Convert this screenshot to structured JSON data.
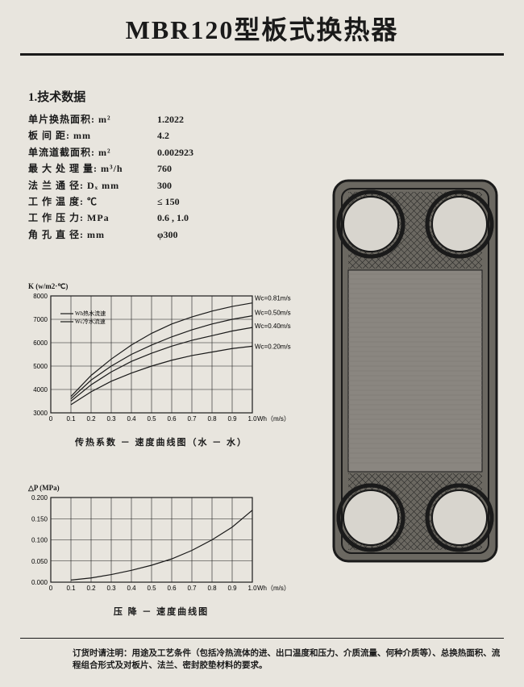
{
  "title": "MBR120型板式换热器",
  "section_heading": "1.技术数据",
  "specs": [
    {
      "label": "单片换热面积: m²",
      "value": "1.2022"
    },
    {
      "label": "板 间 距: mm",
      "value": "4.2"
    },
    {
      "label": "单流道截面积: m²",
      "value": "0.002923"
    },
    {
      "label": "最 大 处 理 量: m³/h",
      "value": "760"
    },
    {
      "label": "法 兰 通 径: Dₓ mm",
      "value": "300"
    },
    {
      "label": "工 作 温 度: ℃",
      "value": "≤ 150"
    },
    {
      "label": "工 作 压 力: MPa",
      "value": "0.6 , 1.0"
    },
    {
      "label": "角 孔 直 径: mm",
      "value": "φ300"
    }
  ],
  "chart1": {
    "type": "line",
    "y_title": "K (w/m2·℃)",
    "x_title": "Wh（m/s）",
    "caption": "传热系数 － 速度曲线图（水 － 水）",
    "xlim": [
      0,
      1.0
    ],
    "ylim": [
      3000,
      8000
    ],
    "xtick_step": 0.1,
    "ytick_step": 1000,
    "legend": [
      "Wh热水流速",
      "Wc冷水流速"
    ],
    "series": [
      {
        "label": "Wc=0.81m/s",
        "data": [
          [
            0.1,
            3700
          ],
          [
            0.2,
            4600
          ],
          [
            0.3,
            5300
          ],
          [
            0.4,
            5900
          ],
          [
            0.5,
            6400
          ],
          [
            0.6,
            6800
          ],
          [
            0.7,
            7100
          ],
          [
            0.8,
            7350
          ],
          [
            0.9,
            7550
          ],
          [
            1.0,
            7700
          ]
        ]
      },
      {
        "label": "Wc=0.50m/s",
        "data": [
          [
            0.1,
            3600
          ],
          [
            0.2,
            4400
          ],
          [
            0.3,
            5000
          ],
          [
            0.4,
            5500
          ],
          [
            0.5,
            5900
          ],
          [
            0.6,
            6250
          ],
          [
            0.7,
            6550
          ],
          [
            0.8,
            6800
          ],
          [
            0.9,
            7000
          ],
          [
            1.0,
            7150
          ]
        ]
      },
      {
        "label": "Wc=0.40m/s",
        "data": [
          [
            0.1,
            3500
          ],
          [
            0.2,
            4200
          ],
          [
            0.3,
            4750
          ],
          [
            0.4,
            5200
          ],
          [
            0.5,
            5550
          ],
          [
            0.6,
            5850
          ],
          [
            0.7,
            6100
          ],
          [
            0.8,
            6300
          ],
          [
            0.9,
            6500
          ],
          [
            1.0,
            6650
          ]
        ]
      },
      {
        "label": "Wc=0.20m/s",
        "data": [
          [
            0.1,
            3350
          ],
          [
            0.2,
            3900
          ],
          [
            0.3,
            4350
          ],
          [
            0.4,
            4700
          ],
          [
            0.5,
            5000
          ],
          [
            0.6,
            5250
          ],
          [
            0.7,
            5450
          ],
          [
            0.8,
            5600
          ],
          [
            0.9,
            5750
          ],
          [
            1.0,
            5850
          ]
        ]
      }
    ],
    "background_color": "#e8e5de",
    "line_color": "#1a1a1a",
    "grid_color": "#1a1a1a"
  },
  "chart2": {
    "type": "line",
    "y_title": "△P (MPa)",
    "x_title": "Wh（m/s）",
    "caption": "压 降 － 速度曲线图",
    "xlim": [
      0,
      1.0
    ],
    "ylim": [
      0,
      0.2
    ],
    "xtick_step": 0.1,
    "ytick_step": 0.05,
    "series": [
      {
        "label": "",
        "data": [
          [
            0.1,
            0.005
          ],
          [
            0.2,
            0.01
          ],
          [
            0.3,
            0.018
          ],
          [
            0.4,
            0.028
          ],
          [
            0.5,
            0.04
          ],
          [
            0.6,
            0.055
          ],
          [
            0.7,
            0.075
          ],
          [
            0.8,
            0.1
          ],
          [
            0.9,
            0.13
          ],
          [
            1.0,
            0.17
          ]
        ]
      }
    ],
    "background_color": "#e8e5de",
    "line_color": "#1a1a1a",
    "grid_color": "#1a1a1a"
  },
  "plate": {
    "outer_color": "#4a4843",
    "pattern_color": "#6b6861",
    "hole_fill": "#d8d5ce"
  },
  "footer": "订货时请注明：用途及工艺条件（包括冷热流体的进、出口温度和压力、介质流量、何种介质等）、总换热面积、流程组合形式及对板片、法兰、密封胶垫材料的要求。"
}
